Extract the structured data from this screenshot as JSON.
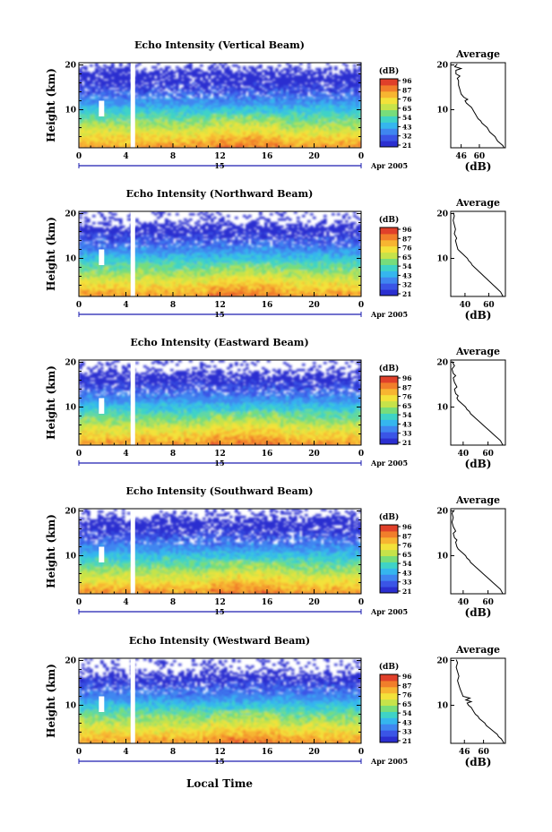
{
  "figure": {
    "xlabel": "Local Time",
    "date_day": "15",
    "date_suffix": "Apr 2005",
    "ylabel": "Height (km)",
    "colorbar_unit": "(dB)",
    "average_title": "Average",
    "average_xlabel": "(dB)"
  },
  "colors": {
    "scale": [
      "#2b2fd0",
      "#3a55e6",
      "#3f86f0",
      "#35b6ee",
      "#3fd3c6",
      "#77dd7b",
      "#c6e34a",
      "#f3e23a",
      "#f7b531",
      "#f17e2b",
      "#e0402a"
    ],
    "time_axis": "#1d1fb0"
  },
  "chart_data": [
    {
      "type": "heatmap",
      "title": "Echo Intensity (Vertical Beam)",
      "x_ticks": [
        "0",
        "4",
        "8",
        "12",
        "16",
        "20",
        "0"
      ],
      "y_ticks": [
        "20",
        "10"
      ],
      "xlim": [
        0,
        24
      ],
      "ylim": [
        1.5,
        20.5
      ],
      "colorbar_ticks": [
        "96",
        "87",
        "76",
        "65",
        "54",
        "43",
        "32",
        "21"
      ],
      "average": {
        "x_ticks": [
          "46",
          "60"
        ],
        "xlim": [
          38,
          80
        ],
        "profile": [
          [
            79,
            1.5
          ],
          [
            78,
            2.0
          ],
          [
            76,
            2.5
          ],
          [
            74,
            3.0
          ],
          [
            73,
            3.5
          ],
          [
            72,
            4.0
          ],
          [
            70,
            4.5
          ],
          [
            68,
            5.0
          ],
          [
            67,
            5.5
          ],
          [
            66,
            6.0
          ],
          [
            64,
            6.5
          ],
          [
            62,
            7.0
          ],
          [
            61,
            7.5
          ],
          [
            59,
            8.0
          ],
          [
            58,
            8.5
          ],
          [
            57,
            9.0
          ],
          [
            56,
            9.5
          ],
          [
            55,
            10.0
          ],
          [
            54,
            10.5
          ],
          [
            52,
            11.0
          ],
          [
            50,
            11.5
          ],
          [
            49,
            12.0
          ],
          [
            51,
            12.3
          ],
          [
            48,
            12.8
          ],
          [
            46,
            13.5
          ],
          [
            45,
            14.5
          ],
          [
            44,
            15.5
          ],
          [
            44,
            16.5
          ],
          [
            43,
            17.0
          ],
          [
            45,
            17.5
          ],
          [
            42,
            18.0
          ],
          [
            42,
            18.8
          ],
          [
            46,
            19.2
          ],
          [
            41,
            19.6
          ],
          [
            43,
            20.2
          ]
        ]
      }
    },
    {
      "type": "heatmap",
      "title": "Echo Intensity (Northward Beam)",
      "x_ticks": [
        "0",
        "4",
        "8",
        "12",
        "16",
        "20",
        "0"
      ],
      "y_ticks": [
        "20",
        "10"
      ],
      "xlim": [
        0,
        24
      ],
      "ylim": [
        1.5,
        20.5
      ],
      "colorbar_ticks": [
        "96",
        "87",
        "76",
        "65",
        "54",
        "43",
        "32",
        "21"
      ],
      "average": {
        "x_ticks": [
          "40",
          "60"
        ],
        "xlim": [
          28,
          74
        ],
        "profile": [
          [
            72,
            1.5
          ],
          [
            71,
            2.0
          ],
          [
            70,
            2.5
          ],
          [
            68,
            3.0
          ],
          [
            66,
            3.5
          ],
          [
            64,
            4.0
          ],
          [
            62,
            4.5
          ],
          [
            60,
            5.0
          ],
          [
            58,
            5.5
          ],
          [
            56,
            6.0
          ],
          [
            54,
            6.5
          ],
          [
            52,
            7.0
          ],
          [
            50,
            7.5
          ],
          [
            48,
            8.0
          ],
          [
            46,
            8.5
          ],
          [
            45,
            9.0
          ],
          [
            43,
            9.5
          ],
          [
            42,
            10.0
          ],
          [
            40,
            10.5
          ],
          [
            38,
            11.0
          ],
          [
            36,
            11.5
          ],
          [
            34,
            12.0
          ],
          [
            33,
            13.0
          ],
          [
            32,
            14.0
          ],
          [
            33,
            14.5
          ],
          [
            31,
            15.5
          ],
          [
            32,
            16.5
          ],
          [
            31,
            17.5
          ],
          [
            30,
            18.5
          ],
          [
            31,
            19.5
          ],
          [
            30,
            20.2
          ]
        ]
      }
    },
    {
      "type": "heatmap",
      "title": "Echo Intensity (Eastward Beam)",
      "x_ticks": [
        "0",
        "4",
        "8",
        "12",
        "16",
        "20",
        "0"
      ],
      "y_ticks": [
        "20",
        "10"
      ],
      "xlim": [
        0,
        24
      ],
      "ylim": [
        1.5,
        20.5
      ],
      "colorbar_ticks": [
        "96",
        "87",
        "76",
        "65",
        "54",
        "43",
        "33",
        "21"
      ],
      "average": {
        "x_ticks": [
          "40",
          "60"
        ],
        "xlim": [
          30,
          74
        ],
        "profile": [
          [
            72,
            1.5
          ],
          [
            71,
            2.0
          ],
          [
            70,
            2.5
          ],
          [
            68,
            3.0
          ],
          [
            66,
            3.5
          ],
          [
            64,
            4.0
          ],
          [
            62,
            4.5
          ],
          [
            60,
            5.0
          ],
          [
            58,
            5.5
          ],
          [
            56,
            6.0
          ],
          [
            54,
            6.5
          ],
          [
            52,
            7.0
          ],
          [
            50,
            7.5
          ],
          [
            48,
            8.0
          ],
          [
            46,
            8.5
          ],
          [
            45,
            9.0
          ],
          [
            43,
            9.5
          ],
          [
            42,
            10.0
          ],
          [
            40,
            10.5
          ],
          [
            38,
            11.0
          ],
          [
            36,
            11.5
          ],
          [
            35,
            12.0
          ],
          [
            36,
            12.5
          ],
          [
            34,
            13.0
          ],
          [
            33,
            14.0
          ],
          [
            35,
            14.5
          ],
          [
            33,
            15.5
          ],
          [
            32,
            16.5
          ],
          [
            34,
            17.0
          ],
          [
            32,
            17.5
          ],
          [
            31,
            18.5
          ],
          [
            33,
            19.2
          ],
          [
            31,
            20.2
          ]
        ]
      }
    },
    {
      "type": "heatmap",
      "title": "Echo Intensity (Southward Beam)",
      "x_ticks": [
        "0",
        "4",
        "8",
        "12",
        "16",
        "20",
        "0"
      ],
      "y_ticks": [
        "20",
        "10"
      ],
      "xlim": [
        0,
        24
      ],
      "ylim": [
        1.5,
        20.5
      ],
      "colorbar_ticks": [
        "96",
        "87",
        "76",
        "65",
        "54",
        "43",
        "33",
        "21"
      ],
      "average": {
        "x_ticks": [
          "40",
          "60"
        ],
        "xlim": [
          30,
          74
        ],
        "profile": [
          [
            72,
            1.5
          ],
          [
            71,
            2.0
          ],
          [
            70,
            2.5
          ],
          [
            68,
            3.0
          ],
          [
            66,
            3.5
          ],
          [
            64,
            4.0
          ],
          [
            62,
            4.5
          ],
          [
            60,
            5.0
          ],
          [
            58,
            5.5
          ],
          [
            56,
            6.0
          ],
          [
            54,
            6.5
          ],
          [
            52,
            7.0
          ],
          [
            50,
            7.5
          ],
          [
            48,
            8.0
          ],
          [
            46,
            8.5
          ],
          [
            45,
            9.0
          ],
          [
            43,
            9.5
          ],
          [
            42,
            10.0
          ],
          [
            40,
            10.5
          ],
          [
            38,
            11.0
          ],
          [
            36,
            11.5
          ],
          [
            35,
            12.0
          ],
          [
            34,
            13.0
          ],
          [
            35,
            13.5
          ],
          [
            33,
            14.0
          ],
          [
            32,
            15.0
          ],
          [
            34,
            15.5
          ],
          [
            32,
            16.5
          ],
          [
            31,
            17.5
          ],
          [
            32,
            18.5
          ],
          [
            31,
            19.5
          ],
          [
            33,
            20.2
          ]
        ]
      }
    },
    {
      "type": "heatmap",
      "title": "Echo Intensity (Westward Beam)",
      "x_ticks": [
        "0",
        "4",
        "8",
        "12",
        "16",
        "20",
        "0"
      ],
      "y_ticks": [
        "20",
        "10"
      ],
      "xlim": [
        0,
        24
      ],
      "ylim": [
        1.5,
        20.5
      ],
      "colorbar_ticks": [
        "96",
        "87",
        "76",
        "65",
        "54",
        "43",
        "33",
        "21"
      ],
      "average": {
        "x_ticks": [
          "46",
          "60"
        ],
        "xlim": [
          36,
          76
        ],
        "profile": [
          [
            75,
            1.5
          ],
          [
            74,
            2.0
          ],
          [
            73,
            2.5
          ],
          [
            71,
            3.0
          ],
          [
            70,
            3.5
          ],
          [
            68,
            4.0
          ],
          [
            66,
            4.5
          ],
          [
            64,
            5.0
          ],
          [
            62,
            5.5
          ],
          [
            61,
            6.0
          ],
          [
            59,
            6.5
          ],
          [
            57,
            7.0
          ],
          [
            56,
            7.5
          ],
          [
            54,
            8.0
          ],
          [
            53,
            8.5
          ],
          [
            52,
            9.0
          ],
          [
            51,
            9.5
          ],
          [
            49,
            10.0
          ],
          [
            48,
            10.5
          ],
          [
            51,
            10.8
          ],
          [
            47,
            11.2
          ],
          [
            50,
            11.6
          ],
          [
            45,
            12.0
          ],
          [
            44,
            12.8
          ],
          [
            43,
            13.5
          ],
          [
            42,
            14.5
          ],
          [
            41,
            15.5
          ],
          [
            42,
            16.5
          ],
          [
            41,
            17.5
          ],
          [
            40,
            18.5
          ],
          [
            41,
            19.5
          ],
          [
            40,
            20.2
          ]
        ]
      }
    }
  ]
}
